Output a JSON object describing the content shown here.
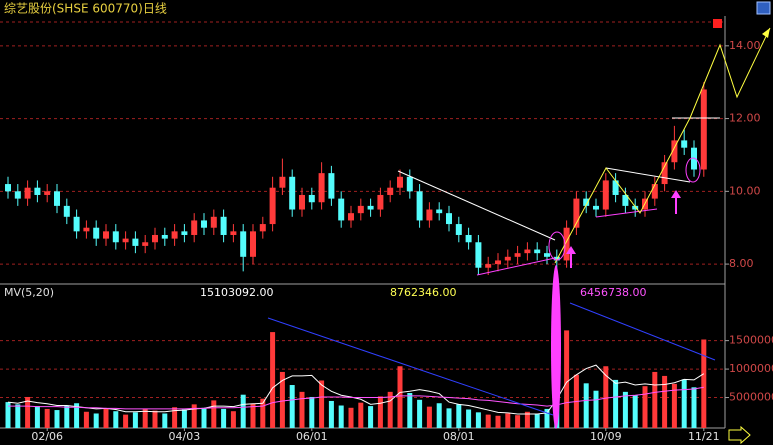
{
  "chart_data": {
    "type": "candlestick",
    "title": "综艺股份(SHSE 600770)日线",
    "up_color": "#ff3a3a",
    "down_color": "#54fcfc",
    "grid": true,
    "categories": [
      null,
      null,
      null,
      null,
      "02/06",
      null,
      null,
      null,
      null,
      null,
      null,
      null,
      null,
      null,
      null,
      null,
      null,
      null,
      "04/03",
      null,
      null,
      null,
      null,
      null,
      null,
      null,
      null,
      null,
      null,
      null,
      null,
      "06/01",
      null,
      null,
      null,
      null,
      null,
      null,
      null,
      null,
      null,
      null,
      null,
      null,
      null,
      null,
      "08/01",
      null,
      null,
      null,
      null,
      null,
      null,
      null,
      null,
      null,
      null,
      null,
      null,
      null,
      null,
      "10/09",
      null,
      null,
      null,
      null,
      null,
      null,
      null,
      null,
      null,
      "11/21"
    ],
    "open": [
      10.2,
      10.0,
      9.8,
      10.1,
      9.9,
      10.0,
      9.6,
      9.3,
      8.9,
      9.0,
      8.7,
      8.9,
      8.6,
      8.7,
      8.5,
      8.6,
      8.8,
      8.7,
      8.9,
      8.8,
      9.2,
      9.0,
      9.3,
      8.8,
      8.9,
      8.2,
      8.9,
      9.1,
      10.1,
      10.4,
      9.5,
      9.9,
      9.7,
      10.5,
      9.8,
      9.2,
      9.4,
      9.6,
      9.5,
      9.9,
      10.1,
      10.4,
      10.0,
      9.2,
      9.5,
      9.4,
      9.1,
      8.8,
      8.6,
      7.9,
      8.0,
      8.1,
      8.2,
      8.3,
      8.4,
      8.3,
      8.2,
      8.1,
      9.0,
      9.8,
      9.6,
      9.5,
      10.3,
      9.9,
      9.6,
      9.5,
      9.8,
      10.2,
      10.8,
      11.4,
      11.2,
      10.6
    ],
    "high": [
      10.4,
      10.2,
      10.3,
      10.3,
      10.2,
      10.2,
      9.8,
      9.5,
      9.2,
      9.2,
      9.1,
      9.1,
      8.9,
      8.9,
      8.8,
      9.0,
      9.0,
      9.1,
      9.1,
      9.4,
      9.4,
      9.5,
      9.5,
      9.1,
      9.1,
      9.1,
      9.3,
      10.4,
      10.9,
      10.6,
      10.1,
      10.1,
      10.8,
      10.7,
      10.0,
      9.6,
      9.8,
      9.8,
      10.1,
      10.3,
      10.6,
      10.6,
      10.2,
      9.7,
      9.7,
      9.6,
      9.3,
      9.0,
      8.8,
      8.2,
      8.3,
      8.4,
      8.5,
      8.6,
      8.6,
      8.5,
      8.4,
      9.2,
      10.0,
      10.0,
      9.8,
      10.5,
      10.5,
      10.1,
      9.8,
      10.0,
      10.4,
      11.0,
      11.8,
      11.7,
      11.4,
      13.0
    ],
    "low": [
      9.8,
      9.6,
      9.6,
      9.7,
      9.7,
      9.4,
      9.1,
      8.7,
      8.7,
      8.5,
      8.5,
      8.4,
      8.4,
      8.3,
      8.3,
      8.4,
      8.5,
      8.5,
      8.6,
      8.6,
      8.8,
      8.8,
      8.6,
      8.6,
      7.8,
      8.0,
      8.7,
      8.9,
      9.9,
      9.3,
      9.3,
      9.5,
      9.5,
      9.6,
      9.0,
      9.0,
      9.2,
      9.3,
      9.3,
      9.7,
      9.9,
      9.8,
      9.0,
      9.0,
      9.2,
      8.9,
      8.6,
      8.4,
      7.7,
      7.7,
      7.8,
      7.9,
      8.0,
      8.1,
      8.1,
      8.0,
      7.9,
      7.9,
      8.8,
      9.4,
      9.3,
      9.3,
      9.7,
      9.4,
      9.3,
      9.3,
      9.6,
      10.0,
      10.6,
      11.0,
      10.4,
      10.4
    ],
    "close": [
      10.0,
      9.8,
      10.1,
      9.9,
      10.0,
      9.6,
      9.3,
      8.9,
      9.0,
      8.7,
      8.9,
      8.6,
      8.7,
      8.5,
      8.6,
      8.8,
      8.7,
      8.9,
      8.8,
      9.2,
      9.0,
      9.3,
      8.8,
      8.9,
      8.2,
      8.9,
      9.1,
      10.1,
      10.4,
      9.5,
      9.9,
      9.7,
      10.5,
      9.8,
      9.2,
      9.4,
      9.6,
      9.5,
      9.9,
      10.1,
      10.4,
      10.0,
      9.2,
      9.5,
      9.4,
      9.1,
      8.8,
      8.6,
      7.9,
      8.0,
      8.1,
      8.2,
      8.3,
      8.4,
      8.3,
      8.2,
      8.1,
      9.0,
      9.8,
      9.6,
      9.5,
      10.3,
      9.9,
      9.6,
      9.5,
      9.8,
      10.2,
      10.8,
      11.4,
      11.2,
      10.6,
      12.8
    ],
    "ylim": [
      7.48,
      14.82
    ],
    "yticks": [
      {
        "value": 8,
        "label": "8.00"
      },
      {
        "value": 10,
        "label": "10.00"
      },
      {
        "value": 12,
        "label": "12.00"
      },
      {
        "value": 14,
        "label": "14.00"
      }
    ],
    "volume": {
      "label": "MV(5,20)",
      "readouts": [
        {
          "value": 15103092,
          "label": "15103092.00",
          "color": "#ffffff"
        },
        {
          "value": 8762346,
          "label": "8762346.00",
          "color": "#ffff54"
        },
        {
          "value": 6456738,
          "label": "6456738.00",
          "color": "#ff54ff"
        }
      ],
      "values": [
        4200000,
        3800000,
        5100000,
        3500000,
        3000000,
        2800000,
        3600000,
        4000000,
        2500000,
        2200000,
        3100000,
        2600000,
        2000000,
        2400000,
        3000000,
        2700000,
        2200000,
        3300000,
        2900000,
        3800000,
        3200000,
        4500000,
        3000000,
        2600000,
        5500000,
        3900000,
        4800000,
        16500000,
        9500000,
        7200000,
        6000000,
        5100000,
        8000000,
        4400000,
        3600000,
        3200000,
        4100000,
        3500000,
        5200000,
        6000000,
        10500000,
        5800000,
        4600000,
        3400000,
        4000000,
        3100000,
        3800000,
        2900000,
        2400000,
        2000000,
        1800000,
        2200000,
        1900000,
        2500000,
        2100000,
        3000000,
        14000000,
        16800000,
        9000000,
        7500000,
        6200000,
        10500000,
        8100000,
        6000000,
        5400000,
        7000000,
        9500000,
        8800000,
        7400000,
        8200000,
        6800000,
        15200000
      ],
      "series": [
        {
          "color": "#ffffff",
          "values": [
            4200000,
            4000000,
            4400000,
            4100000,
            3900000,
            3600000,
            3600000,
            3400000,
            3200000,
            3000000,
            3100000,
            2900000,
            2500000,
            2500000,
            2600000,
            2500000,
            2500000,
            2700000,
            2800000,
            3000000,
            3100000,
            3500000,
            3500000,
            3400000,
            3800000,
            3900000,
            4000000,
            6700000,
            8000000,
            8800000,
            8800000,
            8900000,
            7200000,
            6100000,
            5400000,
            5100000,
            4700000,
            3800000,
            4000000,
            4400000,
            5900000,
            6100000,
            6400000,
            6100000,
            5700000,
            4200000,
            3800000,
            3600000,
            3200000,
            2800000,
            2400000,
            2300000,
            2100000,
            2100000,
            2100000,
            2300000,
            4700000,
            7700000,
            9000000,
            10100000,
            10700000,
            8900000,
            7500000,
            7700000,
            7200000,
            7400000,
            7200000,
            7300000,
            7600000,
            8200000,
            8100000,
            9200000
          ]
        },
        {
          "color": "#ff54ff",
          "values": [
            3500000,
            3500000,
            3500000,
            3400000,
            3400000,
            3400000,
            3300000,
            3300000,
            3200000,
            3200000,
            3100000,
            3100000,
            3000000,
            3000000,
            3000000,
            3000000,
            3000000,
            3000000,
            3000000,
            3100000,
            3100000,
            3200000,
            3200000,
            3200000,
            3300000,
            3400000,
            3500000,
            4100000,
            4400000,
            4600000,
            4800000,
            4900000,
            5100000,
            5100000,
            5100000,
            5000000,
            5000000,
            5000000,
            5000000,
            5100000,
            5300000,
            5300000,
            5300000,
            5200000,
            5100000,
            5000000,
            4900000,
            4800000,
            4600000,
            4500000,
            4300000,
            4100000,
            3900000,
            3800000,
            3700000,
            3500000,
            3700000,
            4100000,
            4300000,
            4500000,
            4600000,
            4900000,
            5100000,
            5300000,
            5400000,
            5600000,
            5900000,
            6100000,
            6300000,
            6400000,
            6500000,
            6800000
          ]
        }
      ],
      "ylim": [
        0,
        24600000
      ],
      "yticks": [
        5000000,
        10000000,
        15000000
      ]
    }
  }
}
